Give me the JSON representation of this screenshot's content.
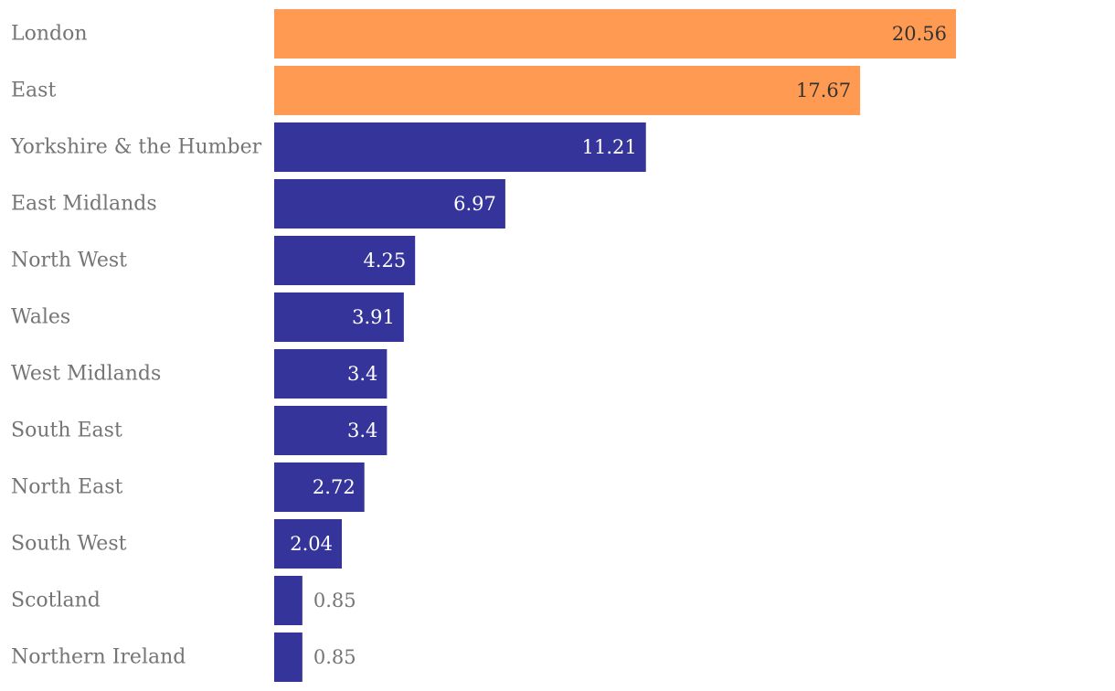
{
  "chart_data": {
    "type": "bar",
    "orientation": "horizontal",
    "title": "",
    "xlabel": "",
    "ylabel": "",
    "categories": [
      "London",
      "East",
      "Yorkshire & the Humber",
      "East Midlands",
      "North West",
      "Wales",
      "West Midlands",
      "South East",
      "North East",
      "South West",
      "Scotland",
      "Northern Ireland"
    ],
    "values": [
      20.56,
      17.67,
      11.21,
      6.97,
      4.25,
      3.91,
      3.4,
      3.4,
      2.72,
      2.04,
      0.85,
      0.85
    ],
    "value_labels": [
      "20.56",
      "17.67",
      "11.21",
      "6.97",
      "4.25",
      "3.91",
      "3.4",
      "3.4",
      "2.72",
      "2.04",
      "0.85",
      "0.85"
    ],
    "highlighted": [
      true,
      true,
      false,
      false,
      false,
      false,
      false,
      false,
      false,
      false,
      false,
      false
    ],
    "xlim": [
      0,
      20.56
    ],
    "grid": false,
    "legend": "none",
    "colors": {
      "highlight": "#ff9a52",
      "default": "#35349a",
      "category_text": "#757575",
      "value_text_on_highlight": "#333333",
      "value_text_on_default": "#ffffff",
      "value_text_outside": "#757575"
    }
  }
}
